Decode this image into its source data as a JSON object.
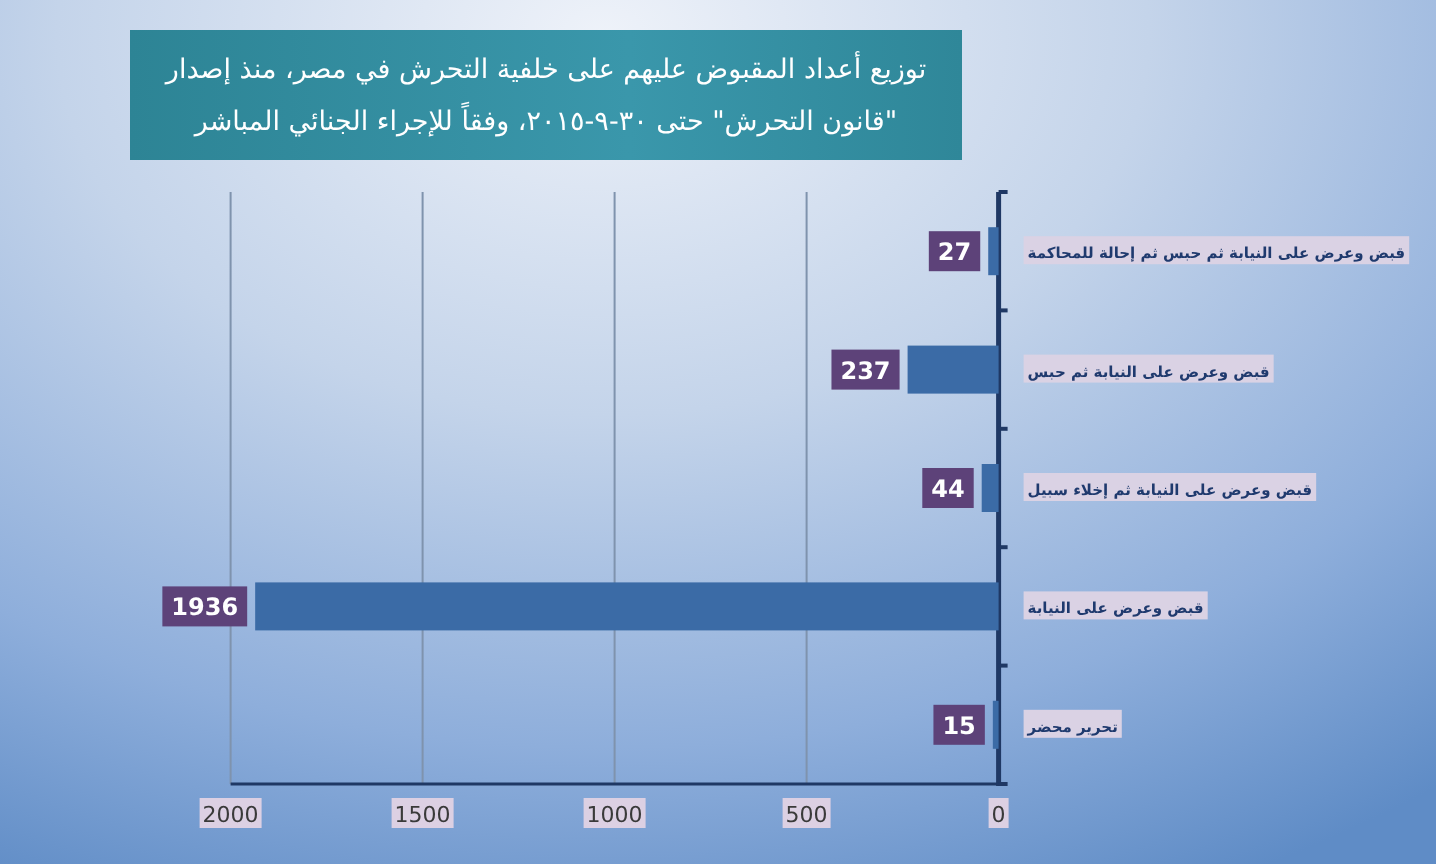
{
  "chart_data": {
    "type": "bar",
    "orientation": "horizontal",
    "title": "توزيع أعداد المقبوض عليهم على خلفية التحرش في مصر، منذ إصدار \"قانون التحرش\" حتى ٣٠-٩-٢٠١٥، وفقاً للإجراء الجنائي المباشر",
    "categories": [
      "قبض وعرض على النيابة ثم حبس ثم إحالة للمحاكمة",
      "قبض وعرض على النيابة ثم حبس",
      "قبض وعرض على النيابة ثم إخلاء سبيل",
      "قبض وعرض على النيابة",
      "تحرير محضر"
    ],
    "values": [
      27,
      237,
      44,
      1936,
      15
    ],
    "color": "#3b6ba6",
    "xlim": [
      2000,
      0
    ],
    "xticks": [
      0,
      500,
      1000,
      1500,
      2000
    ],
    "grid": "x",
    "data_labels": true
  }
}
